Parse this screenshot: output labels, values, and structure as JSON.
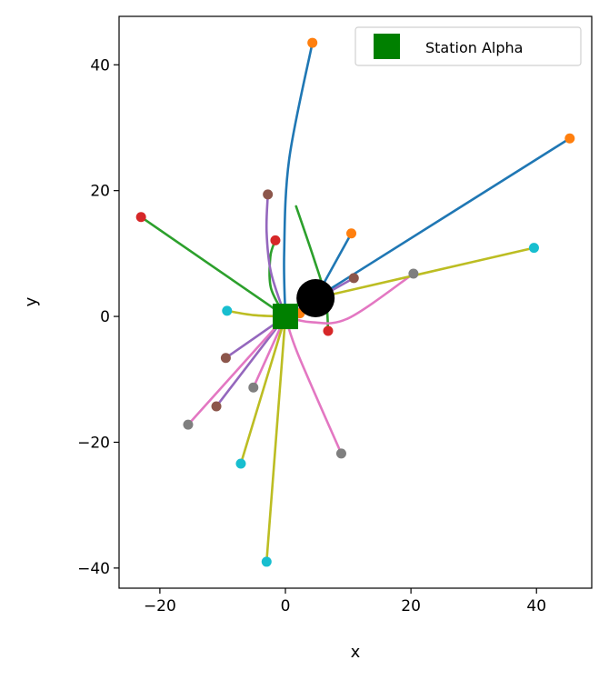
{
  "chart_data": {
    "type": "line",
    "title": "",
    "xlabel": "x",
    "ylabel": "y",
    "xlim": [
      -26.5,
      48.8
    ],
    "ylim": [
      -43.2,
      47.7
    ],
    "xticks": [
      -20,
      0,
      20,
      40
    ],
    "yticks": [
      -40,
      -20,
      0,
      20,
      40
    ],
    "xtick_labels": [
      "−20",
      "0",
      "20",
      "40"
    ],
    "ytick_labels": [
      "−40",
      "−20",
      "0",
      "20",
      "40"
    ],
    "grid": false,
    "legend": {
      "placement": "top-right",
      "entries": [
        {
          "label": "Station Alpha",
          "color": "#008000",
          "marker": "square"
        }
      ]
    },
    "station": {
      "name": "Station Alpha",
      "x": 0,
      "y": 0,
      "color": "#008000"
    },
    "hub": {
      "x": 4.8,
      "y": 2.9,
      "color": "#000000"
    },
    "tracks": [
      {
        "color": "#1f77b4",
        "end_color": "#ff7f0e",
        "points": [
          [
            0,
            0
          ],
          [
            -0.2,
            10
          ],
          [
            0.6,
            25
          ],
          [
            4.3,
            43.5
          ]
        ]
      },
      {
        "color": "#1f77b4",
        "end_color": "#ff7f0e",
        "points": [
          [
            4.8,
            2.9
          ],
          [
            45.3,
            28.3
          ]
        ]
      },
      {
        "color": "#1f77b4",
        "end_color": "#ff7f0e",
        "points": [
          [
            4.8,
            2.9
          ],
          [
            10.5,
            13.2
          ]
        ]
      },
      {
        "color": "#2ca02c",
        "end_color": "#d62728",
        "points": [
          [
            0,
            0
          ],
          [
            -23,
            15.8
          ]
        ]
      },
      {
        "color": "#2ca02c",
        "end_color": "#d62728",
        "points": [
          [
            0,
            0
          ],
          [
            -2.3,
            4.5
          ],
          [
            -2.4,
            9.5
          ],
          [
            -1.6,
            12.1
          ]
        ]
      },
      {
        "color": "#2ca02c",
        "end_color": "#d62728",
        "points": [
          [
            1.7,
            17.5
          ],
          [
            4.6,
            9
          ],
          [
            6.4,
            3
          ],
          [
            6.8,
            -2.3
          ]
        ]
      },
      {
        "color": "#2ca02c",
        "end_color": null,
        "points": [
          [
            0,
            0
          ],
          [
            2,
            2
          ],
          [
            4,
            3
          ]
        ]
      },
      {
        "color": "#9467bd",
        "end_color": "#8c564b",
        "points": [
          [
            0,
            0
          ],
          [
            -2.3,
            7
          ],
          [
            -3,
            13.5
          ],
          [
            -2.8,
            19.4
          ]
        ]
      },
      {
        "color": "#9467bd",
        "end_color": "#8c564b",
        "points": [
          [
            0,
            0
          ],
          [
            10.9,
            6.1
          ]
        ]
      },
      {
        "color": "#9467bd",
        "end_color": "#8c564b",
        "points": [
          [
            0,
            0
          ],
          [
            -9.5,
            -6.6
          ]
        ]
      },
      {
        "color": "#9467bd",
        "end_color": "#8c564b",
        "points": [
          [
            0,
            0
          ],
          [
            -11,
            -14.3
          ]
        ]
      },
      {
        "color": "#e377c2",
        "end_color": "#7f7f7f",
        "points": [
          [
            0,
            0
          ],
          [
            4,
            -0.9
          ],
          [
            10,
            -0.3
          ],
          [
            20.4,
            6.8
          ]
        ]
      },
      {
        "color": "#e377c2",
        "end_color": "#7f7f7f",
        "points": [
          [
            0,
            0
          ],
          [
            -5.1,
            -11.3
          ]
        ]
      },
      {
        "color": "#e377c2",
        "end_color": "#7f7f7f",
        "points": [
          [
            0,
            0
          ],
          [
            2,
            -6
          ],
          [
            8.9,
            -21.8
          ]
        ]
      },
      {
        "color": "#e377c2",
        "end_color": "#7f7f7f",
        "points": [
          [
            0,
            0
          ],
          [
            -15.5,
            -17.2
          ]
        ]
      },
      {
        "color": "#bcbd22",
        "end_color": "#17becf",
        "points": [
          [
            4.8,
            2.9
          ],
          [
            39.6,
            10.9
          ]
        ]
      },
      {
        "color": "#bcbd22",
        "end_color": "#17becf",
        "points": [
          [
            0,
            0
          ],
          [
            -5,
            0.2
          ],
          [
            -9.3,
            0.9
          ]
        ]
      },
      {
        "color": "#bcbd22",
        "end_color": "#17becf",
        "points": [
          [
            0,
            0
          ],
          [
            -7.1,
            -23.4
          ]
        ]
      },
      {
        "color": "#bcbd22",
        "end_color": "#17becf",
        "points": [
          [
            0,
            0
          ],
          [
            -3,
            -39
          ]
        ]
      },
      {
        "color": "#ff7f0e",
        "end_color": "#ff7f0e",
        "points": [
          [
            0,
            0
          ],
          [
            2.3,
            0.5
          ]
        ]
      }
    ]
  }
}
